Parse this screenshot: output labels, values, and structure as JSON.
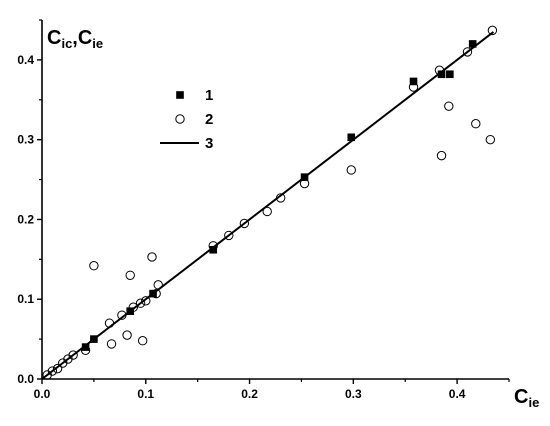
{
  "chart_data": {
    "type": "scatter",
    "y_axis_title": {
      "main": "C",
      "sub1": "ic",
      "sep": ",C",
      "sub2": "ie"
    },
    "x_axis_title": {
      "main": "C",
      "sub": "ie"
    },
    "xlim": [
      0.0,
      0.45
    ],
    "ylim": [
      0.0,
      0.45
    ],
    "xticks": [
      "0.0",
      "0.1",
      "0.2",
      "0.3",
      "0.4"
    ],
    "yticks": [
      "0.0",
      "0.1",
      "0.2",
      "0.3",
      "0.4"
    ],
    "grid": false,
    "legend_position": "upper-left",
    "series": [
      {
        "name": "1",
        "marker": "filled-square",
        "color": "#000000",
        "points": [
          [
            0.042,
            0.04
          ],
          [
            0.05,
            0.05
          ],
          [
            0.085,
            0.085
          ],
          [
            0.107,
            0.107
          ],
          [
            0.165,
            0.162
          ],
          [
            0.253,
            0.253
          ],
          [
            0.298,
            0.303
          ],
          [
            0.358,
            0.373
          ],
          [
            0.385,
            0.382
          ],
          [
            0.393,
            0.382
          ],
          [
            0.415,
            0.42
          ]
        ]
      },
      {
        "name": "2",
        "marker": "open-circle",
        "color": "#000000",
        "points": [
          [
            0.005,
            0.005
          ],
          [
            0.01,
            0.01
          ],
          [
            0.015,
            0.013
          ],
          [
            0.02,
            0.02
          ],
          [
            0.025,
            0.025
          ],
          [
            0.03,
            0.03
          ],
          [
            0.042,
            0.036
          ],
          [
            0.05,
            0.142
          ],
          [
            0.065,
            0.07
          ],
          [
            0.067,
            0.044
          ],
          [
            0.077,
            0.08
          ],
          [
            0.082,
            0.055
          ],
          [
            0.085,
            0.13
          ],
          [
            0.088,
            0.09
          ],
          [
            0.095,
            0.095
          ],
          [
            0.097,
            0.048
          ],
          [
            0.1,
            0.098
          ],
          [
            0.106,
            0.153
          ],
          [
            0.11,
            0.107
          ],
          [
            0.112,
            0.118
          ],
          [
            0.165,
            0.167
          ],
          [
            0.18,
            0.18
          ],
          [
            0.195,
            0.195
          ],
          [
            0.217,
            0.21
          ],
          [
            0.23,
            0.227
          ],
          [
            0.253,
            0.245
          ],
          [
            0.298,
            0.262
          ],
          [
            0.358,
            0.366
          ],
          [
            0.383,
            0.387
          ],
          [
            0.385,
            0.28
          ],
          [
            0.392,
            0.342
          ],
          [
            0.41,
            0.41
          ],
          [
            0.418,
            0.32
          ],
          [
            0.432,
            0.3
          ],
          [
            0.434,
            0.437
          ]
        ]
      },
      {
        "name": "3",
        "marker": "line",
        "color": "#000000",
        "points": [
          [
            0.0,
            0.0
          ],
          [
            0.435,
            0.435
          ]
        ]
      }
    ]
  }
}
